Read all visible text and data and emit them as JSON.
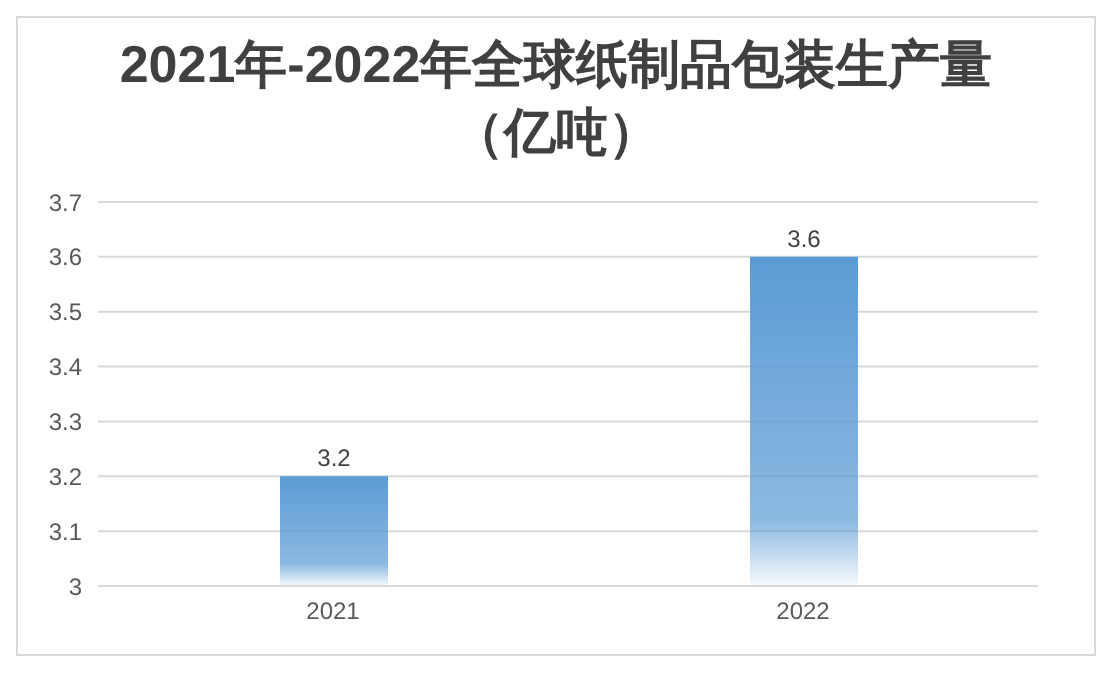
{
  "chart_data": {
    "type": "bar",
    "title": "2021年-2022年全球纸制品包装生产量（亿吨）",
    "categories": [
      "2021",
      "2022"
    ],
    "values": [
      3.2,
      3.6
    ],
    "color": "#5b9bd5",
    "ylim": [
      3,
      3.7
    ],
    "yticks": [
      3,
      3.1,
      3.2,
      3.3,
      3.4,
      3.5,
      3.6,
      3.7
    ],
    "grid": "y",
    "data_labels": true
  }
}
